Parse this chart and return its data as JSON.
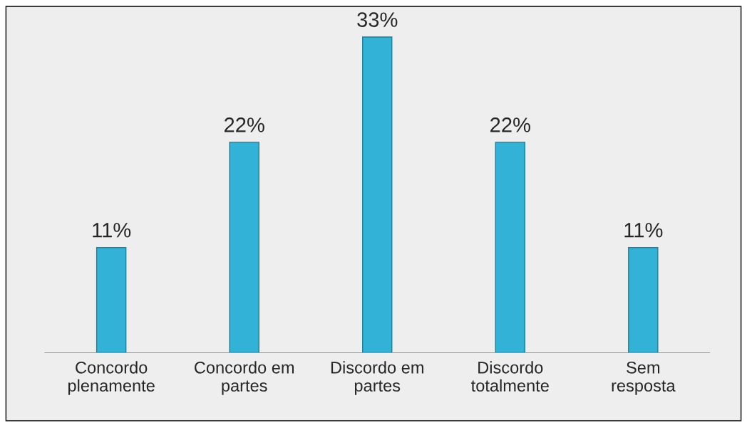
{
  "chart_data": {
    "type": "bar",
    "categories": [
      "Concordo\nplenamente",
      "Concordo em\npartes",
      "Discordo em\npartes",
      "Discordo\ntotalmente",
      "Sem\nresposta"
    ],
    "values": [
      11,
      22,
      33,
      22,
      11
    ],
    "value_labels": [
      "11%",
      "22%",
      "33%",
      "22%",
      "11%"
    ],
    "color": "#31b2d6",
    "tick_labels": "x",
    "grid": false
  }
}
